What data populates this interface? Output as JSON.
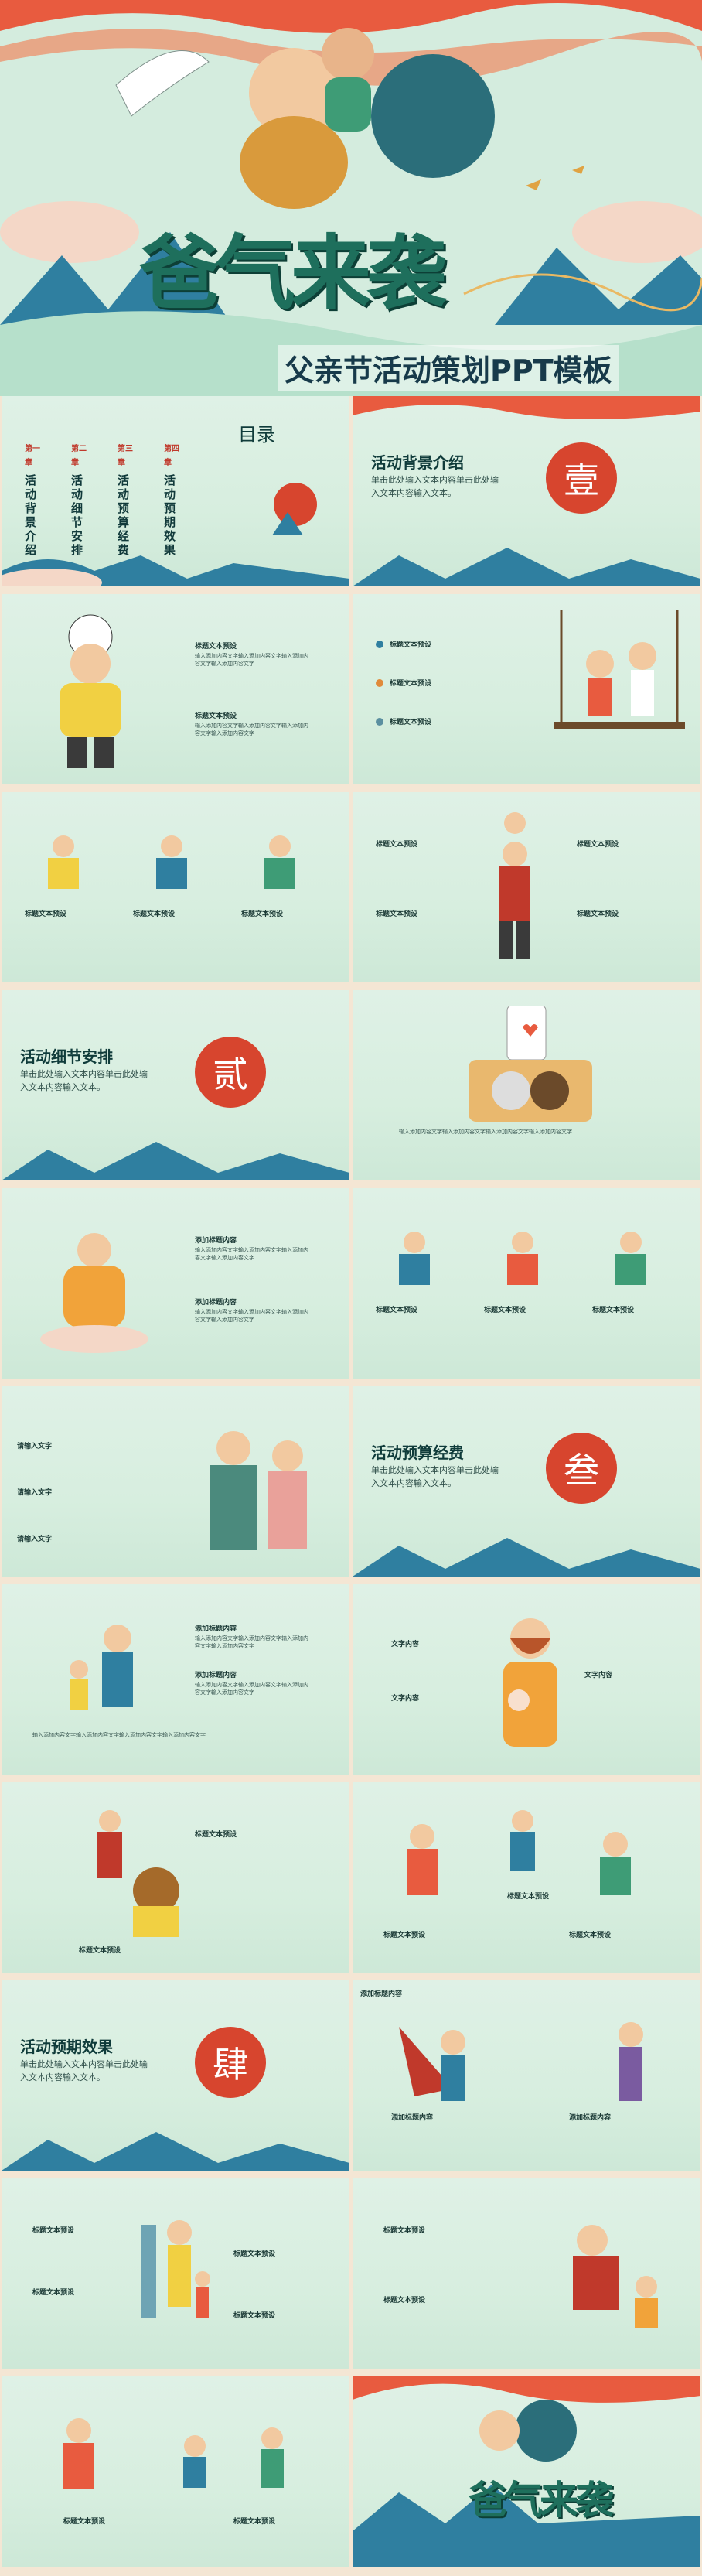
{
  "hero": {
    "title": "爸气来袭",
    "subtitle": "父亲节活动策划PPT模板"
  },
  "toc": {
    "title": "目录",
    "chapters": [
      {
        "chap": "第一章",
        "name": "活动背景介绍"
      },
      {
        "chap": "第二章",
        "name": "活动细节安排"
      },
      {
        "chap": "第三章",
        "name": "活动预算经费"
      },
      {
        "chap": "第四章",
        "name": "活动预期效果"
      }
    ]
  },
  "sections": [
    {
      "seal": "壹",
      "title": "活动背景介绍",
      "desc": "单击此处输入文本内容单击此处输入文本内容输入文本。"
    },
    {
      "seal": "贰",
      "title": "活动细节安排",
      "desc": "单击此处输入文本内容单击此处输入文本内容输入文本。"
    },
    {
      "seal": "叁",
      "title": "活动预算经费",
      "desc": "单击此处输入文本内容单击此处输入文本内容输入文本。"
    },
    {
      "seal": "肆",
      "title": "活动预期效果",
      "desc": "单击此处输入文本内容单击此处输入文本内容输入文本。"
    }
  ],
  "labels": {
    "heading": "标题文本预设",
    "add": "添加标题内容",
    "content": "文字内容",
    "add2": "添加标题内容",
    "clickinput": "请输入文字",
    "filler": "输入添加内容文字输入添加内容文字输入添加内容文字输入添加内容文字"
  },
  "colors": {
    "teal": "#2a8c7c",
    "red": "#d7452e",
    "cream": "#f4e6d4",
    "navy": "#173a4a"
  }
}
